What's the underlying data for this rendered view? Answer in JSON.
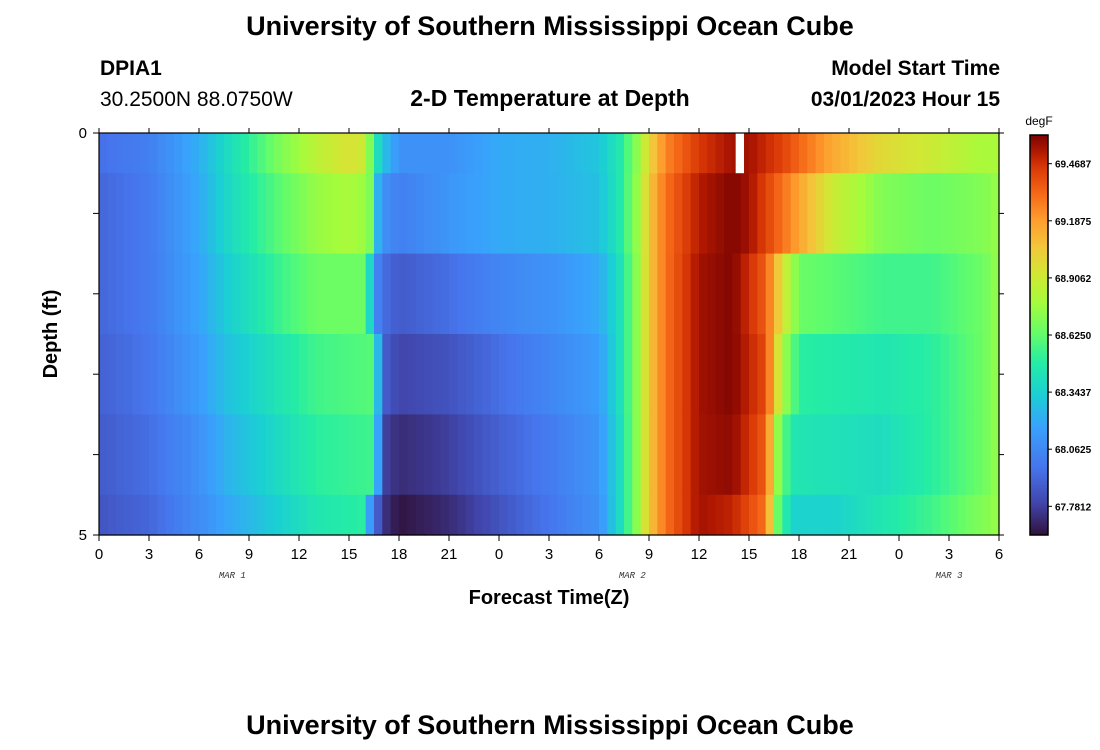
{
  "header": {
    "title": "University of Southern Mississippi Ocean Cube",
    "station": "DPIA1",
    "coords": "30.2500N  88.0750W",
    "plot_title": "2-D Temperature at Depth",
    "model_start_label": "Model Start Time",
    "model_start_value": "03/01/2023 Hour 15"
  },
  "footer": {
    "title": "University of Southern Mississippi Ocean Cube"
  },
  "chart_data": {
    "type": "heatmap",
    "title": "2-D Temperature at Depth",
    "xlabel": "Forecast Time(Z)",
    "ylabel": "Depth (ft)",
    "x_tick_labels": [
      "0",
      "3",
      "6",
      "9",
      "12",
      "15",
      "18",
      "21",
      "0",
      "3",
      "6",
      "9",
      "12",
      "15",
      "18",
      "21",
      "0",
      "3",
      "6"
    ],
    "x_date_labels": [
      "MAR 1",
      "MAR 2",
      "MAR 3"
    ],
    "y_tick_labels": [
      "0",
      "5"
    ],
    "ylim": [
      0,
      5
    ],
    "y_reversed": true,
    "colorbar": {
      "unit": "degF",
      "tick_labels": [
        "69.4687",
        "69.1875",
        "68.9062",
        "68.6250",
        "68.3437",
        "68.0625",
        "67.7812"
      ],
      "vmin": 67.64,
      "vmax": 69.61
    },
    "hours_start": 0,
    "hours_end": 54,
    "depth_layers": [
      {
        "depth_range": [
          0.0,
          0.5
        ],
        "anchors": [
          [
            0,
            67.96
          ],
          [
            3,
            68.02
          ],
          [
            6,
            68.22
          ],
          [
            8,
            68.42
          ],
          [
            11,
            68.7
          ],
          [
            13,
            68.85
          ],
          [
            15,
            68.95
          ],
          [
            16,
            68.9
          ],
          [
            16.5,
            68.5
          ],
          [
            17,
            68.3
          ],
          [
            18,
            68.1
          ],
          [
            21,
            68.1
          ],
          [
            24,
            68.2
          ],
          [
            27,
            68.22
          ],
          [
            30,
            68.3
          ],
          [
            31.2,
            68.45
          ],
          [
            32.2,
            68.7
          ],
          [
            33,
            69.0
          ],
          [
            34,
            69.25
          ],
          [
            36,
            69.45
          ],
          [
            38,
            69.55
          ],
          [
            39,
            69.55
          ],
          [
            41,
            69.42
          ],
          [
            44,
            69.15
          ],
          [
            47,
            68.98
          ],
          [
            50,
            68.9
          ],
          [
            53,
            68.8
          ],
          [
            54,
            68.8
          ]
        ]
      },
      {
        "depth_range": [
          0.5,
          1.5
        ],
        "anchors": [
          [
            0,
            67.92
          ],
          [
            3,
            68.0
          ],
          [
            6,
            68.2
          ],
          [
            8,
            68.4
          ],
          [
            11,
            68.62
          ],
          [
            13,
            68.75
          ],
          [
            15,
            68.8
          ],
          [
            16.2,
            68.75
          ],
          [
            16.6,
            68.3
          ],
          [
            17,
            68.1
          ],
          [
            18,
            68.02
          ],
          [
            21,
            68.12
          ],
          [
            24,
            68.2
          ],
          [
            27,
            68.22
          ],
          [
            30,
            68.28
          ],
          [
            31.2,
            68.45
          ],
          [
            32.2,
            68.72
          ],
          [
            33,
            69.05
          ],
          [
            34,
            69.3
          ],
          [
            36,
            69.52
          ],
          [
            38,
            69.6
          ],
          [
            39,
            69.55
          ],
          [
            41,
            69.3
          ],
          [
            44,
            68.9
          ],
          [
            47,
            68.7
          ],
          [
            50,
            68.65
          ],
          [
            53,
            68.7
          ],
          [
            54,
            68.75
          ]
        ]
      },
      {
        "depth_range": [
          1.5,
          2.5
        ],
        "anchors": [
          [
            0,
            67.92
          ],
          [
            3,
            68.0
          ],
          [
            6,
            68.18
          ],
          [
            8,
            68.35
          ],
          [
            11,
            68.55
          ],
          [
            13,
            68.65
          ],
          [
            16,
            68.65
          ],
          [
            16.5,
            68.1
          ],
          [
            17,
            67.95
          ],
          [
            18,
            67.88
          ],
          [
            21,
            67.95
          ],
          [
            24,
            68.05
          ],
          [
            27,
            68.1
          ],
          [
            30,
            68.2
          ],
          [
            31.2,
            68.4
          ],
          [
            32.2,
            68.7
          ],
          [
            33,
            69.05
          ],
          [
            34,
            69.3
          ],
          [
            36,
            69.55
          ],
          [
            38,
            69.6
          ],
          [
            40,
            69.35
          ],
          [
            41,
            68.95
          ],
          [
            42,
            68.65
          ],
          [
            47,
            68.55
          ],
          [
            50,
            68.55
          ],
          [
            53,
            68.65
          ],
          [
            54,
            68.75
          ]
        ]
      },
      {
        "depth_range": [
          2.5,
          3.5
        ],
        "anchors": [
          [
            0,
            67.9
          ],
          [
            3,
            67.98
          ],
          [
            6,
            68.15
          ],
          [
            8,
            68.3
          ],
          [
            11,
            68.45
          ],
          [
            13,
            68.55
          ],
          [
            16.5,
            68.6
          ],
          [
            17,
            67.9
          ],
          [
            18,
            67.8
          ],
          [
            21,
            67.85
          ],
          [
            24,
            67.95
          ],
          [
            27,
            68.05
          ],
          [
            30,
            68.15
          ],
          [
            31.2,
            68.4
          ],
          [
            32.2,
            68.7
          ],
          [
            33,
            69.05
          ],
          [
            34,
            69.3
          ],
          [
            36,
            69.55
          ],
          [
            38,
            69.6
          ],
          [
            40,
            69.4
          ],
          [
            41,
            68.8
          ],
          [
            42,
            68.5
          ],
          [
            47,
            68.45
          ],
          [
            50,
            68.5
          ],
          [
            53,
            68.65
          ],
          [
            54,
            68.75
          ]
        ]
      },
      {
        "depth_range": [
          3.5,
          4.5
        ],
        "anchors": [
          [
            0,
            67.88
          ],
          [
            3,
            67.95
          ],
          [
            6,
            68.1
          ],
          [
            8,
            68.25
          ],
          [
            11,
            68.4
          ],
          [
            13,
            68.5
          ],
          [
            16.5,
            68.55
          ],
          [
            17,
            67.8
          ],
          [
            18,
            67.72
          ],
          [
            21,
            67.78
          ],
          [
            24,
            67.9
          ],
          [
            27,
            68.0
          ],
          [
            30,
            68.12
          ],
          [
            31.2,
            68.38
          ],
          [
            32.2,
            68.7
          ],
          [
            33,
            69.05
          ],
          [
            34,
            69.3
          ],
          [
            36,
            69.55
          ],
          [
            38,
            69.58
          ],
          [
            40,
            69.35
          ],
          [
            40.8,
            68.7
          ],
          [
            41.6,
            68.45
          ],
          [
            47,
            68.4
          ],
          [
            50,
            68.5
          ],
          [
            53,
            68.65
          ],
          [
            54,
            68.75
          ]
        ]
      },
      {
        "depth_range": [
          4.5,
          5.0
        ],
        "anchors": [
          [
            0,
            67.86
          ],
          [
            3,
            67.92
          ],
          [
            6,
            68.08
          ],
          [
            8,
            68.2
          ],
          [
            11,
            68.35
          ],
          [
            13,
            68.45
          ],
          [
            15.8,
            68.5
          ],
          [
            16.3,
            68.1
          ],
          [
            17,
            67.75
          ],
          [
            18,
            67.65
          ],
          [
            21,
            67.72
          ],
          [
            24,
            67.85
          ],
          [
            27,
            67.98
          ],
          [
            30,
            68.1
          ],
          [
            31.2,
            68.38
          ],
          [
            32.2,
            68.7
          ],
          [
            33,
            69.05
          ],
          [
            34,
            69.3
          ],
          [
            36,
            69.55
          ],
          [
            38,
            69.5
          ],
          [
            40,
            69.3
          ],
          [
            40.8,
            68.6
          ],
          [
            41.6,
            68.35
          ],
          [
            44,
            68.35
          ],
          [
            47,
            68.45
          ],
          [
            50,
            68.55
          ],
          [
            53,
            68.7
          ],
          [
            54,
            68.75
          ]
        ]
      }
    ],
    "missing_gap": {
      "hour_range": [
        38.2,
        38.7
      ],
      "depth_range": [
        0.0,
        0.5
      ]
    }
  }
}
